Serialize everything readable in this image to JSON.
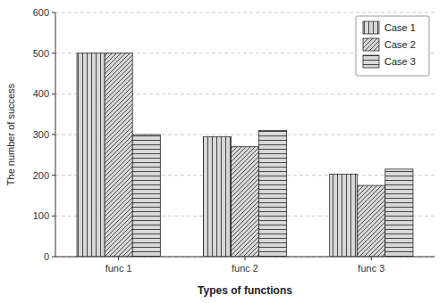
{
  "chart_data": {
    "type": "bar",
    "xlabel": "Types of functions",
    "ylabel": "The number of success",
    "categories": [
      "func 1",
      "func 2",
      "func 3"
    ],
    "series": [
      {
        "name": "Case 1",
        "values": [
          500,
          295,
          203
        ]
      },
      {
        "name": "Case 2",
        "values": [
          500,
          270,
          175
        ]
      },
      {
        "name": "Case 3",
        "values": [
          300,
          310,
          215
        ]
      }
    ],
    "color": "#d8d8d8",
    "ylim": [
      0,
      600
    ],
    "yticks": [
      0,
      100,
      200,
      300,
      400,
      500,
      600
    ],
    "grid": true,
    "legend": "upper right"
  }
}
